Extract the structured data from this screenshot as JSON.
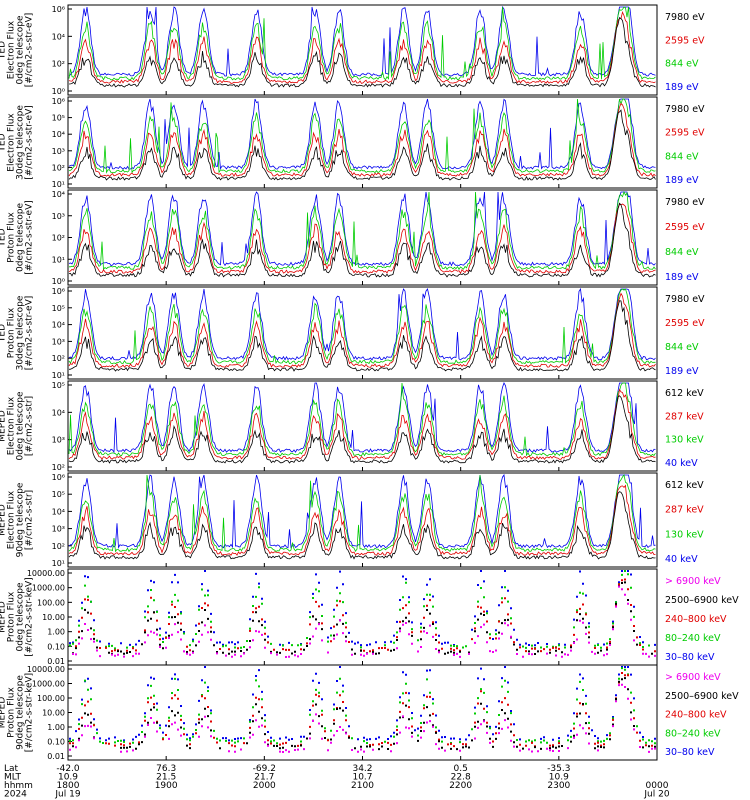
{
  "chart_data": [
    {
      "type": "line",
      "ylabel": [
        "TED",
        "Electron Flux",
        "0deg telescope",
        "[#/cm2-s-str-eV]"
      ],
      "log_scale": true,
      "yticks": [
        "10⁶",
        "10⁴",
        "10²",
        "10⁰"
      ],
      "series": [
        {
          "name": "7980 eV",
          "color": "#000000"
        },
        {
          "name": "2595 eV",
          "color": "#e00000"
        },
        {
          "name": "844 eV",
          "color": "#00cc00"
        },
        {
          "name": "189 eV",
          "color": "#0000ee"
        }
      ]
    },
    {
      "type": "line",
      "ylabel": [
        "TED",
        "Electron Flux",
        "30deg telescope",
        "[#/cm2-s-str-eV]"
      ],
      "log_scale": true,
      "yticks": [
        "10⁶",
        "10⁵",
        "10⁴",
        "10³",
        "10²",
        "10¹"
      ],
      "series": [
        {
          "name": "7980 eV",
          "color": "#000000"
        },
        {
          "name": "2595 eV",
          "color": "#e00000"
        },
        {
          "name": "844 eV",
          "color": "#00cc00"
        },
        {
          "name": "189 eV",
          "color": "#0000ee"
        }
      ]
    },
    {
      "type": "line",
      "ylabel": [
        "TED",
        "Proton Flux",
        "0deg telescope",
        "[#/cm2-s-str-eV]"
      ],
      "log_scale": true,
      "yticks": [
        "10⁴",
        "10³",
        "10²",
        "10¹",
        "10⁰"
      ],
      "series": [
        {
          "name": "7980 eV",
          "color": "#000000"
        },
        {
          "name": "2595 eV",
          "color": "#e00000"
        },
        {
          "name": "844 eV",
          "color": "#00cc00"
        },
        {
          "name": "189 eV",
          "color": "#0000ee"
        }
      ]
    },
    {
      "type": "line",
      "ylabel": [
        "TED",
        "Proton Flux",
        "30deg telescope",
        "[#/cm2-s-str-eV]"
      ],
      "log_scale": true,
      "yticks": [
        "10⁶",
        "10⁵",
        "10⁴",
        "10³",
        "10²",
        "10¹"
      ],
      "series": [
        {
          "name": "7980 eV",
          "color": "#000000"
        },
        {
          "name": "2595 eV",
          "color": "#e00000"
        },
        {
          "name": "844 eV",
          "color": "#00cc00"
        },
        {
          "name": "189 eV",
          "color": "#0000ee"
        }
      ]
    },
    {
      "type": "line",
      "ylabel": [
        "MEPED",
        "Electron Flux",
        "0deg telescope",
        "[#/cm2-s-str]"
      ],
      "log_scale": true,
      "yticks": [
        "10⁵",
        "10⁴",
        "10³",
        "10²"
      ],
      "series": [
        {
          "name": "612 keV",
          "color": "#000000"
        },
        {
          "name": "287 keV",
          "color": "#e00000"
        },
        {
          "name": "130 keV",
          "color": "#00cc00"
        },
        {
          "name": "40 keV",
          "color": "#0000ee"
        }
      ]
    },
    {
      "type": "line",
      "ylabel": [
        "MEPED",
        "Electron Flux",
        "90deg telescope",
        "[#/cm2-s-str]"
      ],
      "log_scale": true,
      "yticks": [
        "10⁶",
        "10⁵",
        "10⁴",
        "10³",
        "10²",
        "10¹"
      ],
      "series": [
        {
          "name": "612 keV",
          "color": "#000000"
        },
        {
          "name": "287 keV",
          "color": "#e00000"
        },
        {
          "name": "130 keV",
          "color": "#00cc00"
        },
        {
          "name": "40 keV",
          "color": "#0000ee"
        }
      ]
    },
    {
      "type": "scatter",
      "ylabel": [
        "MEPED",
        "Proton Flux",
        "0deg telescope",
        "[#/cm2-s-str-keV]"
      ],
      "log_scale": true,
      "yticks": [
        "10000.00",
        "1000.00",
        "100.00",
        "10.00",
        "1.00",
        "0.10",
        "0.01"
      ],
      "series": [
        {
          "name": "> 6900 keV",
          "color": "#ee00ee"
        },
        {
          "name": "2500–6900 keV",
          "color": "#000000"
        },
        {
          "name": "240–800 keV",
          "color": "#e00000"
        },
        {
          "name": "80–240 keV",
          "color": "#00cc00"
        },
        {
          "name": "30–80 keV",
          "color": "#0000ee"
        }
      ]
    },
    {
      "type": "scatter",
      "ylabel": [
        "MEPED",
        "Proton Flux",
        "90deg telescope",
        "[#/cm2-s-str-keV]"
      ],
      "log_scale": true,
      "yticks": [
        "10000.00",
        "1000.00",
        "100.00",
        "10.00",
        "1.00",
        "0.10",
        "0.01"
      ],
      "series": [
        {
          "name": "> 6900 keV",
          "color": "#ee00ee"
        },
        {
          "name": "2500–6900 keV",
          "color": "#000000"
        },
        {
          "name": "240–800 keV",
          "color": "#e00000"
        },
        {
          "name": "80–240 keV",
          "color": "#00cc00"
        },
        {
          "name": "30–80 keV",
          "color": "#0000ee"
        }
      ]
    }
  ],
  "x_axis": {
    "row_labels": [
      "Lat",
      "MLT",
      "hhmm",
      "2024"
    ],
    "ticks": [
      {
        "lat": "-42.0",
        "mlt": "10.9",
        "hhmm": "1800",
        "date": "Jul 19"
      },
      {
        "lat": "76.3",
        "mlt": "21.5",
        "hhmm": "1900",
        "date": ""
      },
      {
        "lat": "-69.2",
        "mlt": "21.7",
        "hhmm": "2000",
        "date": ""
      },
      {
        "lat": "34.2",
        "mlt": "10.7",
        "hhmm": "2100",
        "date": ""
      },
      {
        "lat": "0.5",
        "mlt": "22.8",
        "hhmm": "2200",
        "date": ""
      },
      {
        "lat": "-35.3",
        "mlt": "10.9",
        "hhmm": "2300",
        "date": ""
      },
      {
        "lat": "",
        "mlt": "",
        "hhmm": "0000",
        "date": "Jul 20"
      }
    ]
  }
}
